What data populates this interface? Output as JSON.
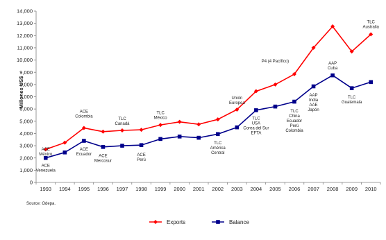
{
  "chart_data": {
    "type": "line",
    "ylabel": "Millones US$",
    "ylim": [
      0,
      14000
    ],
    "yticks": [
      "0",
      "1,000",
      "2,000",
      "3,000",
      "4,000",
      "5,000",
      "6,000",
      "7,000",
      "8,000",
      "9,000",
      "10,000",
      "11,000",
      "12,000",
      "13,000",
      "14,000"
    ],
    "x": [
      "1993",
      "1994",
      "1995",
      "1996",
      "1997",
      "1998",
      "1999",
      "2000",
      "2001",
      "2002",
      "2003",
      "2004",
      "2005",
      "2006",
      "2007",
      "2008",
      "2009",
      "2010"
    ],
    "series": [
      {
        "name": "Exports",
        "color": "#ff0000",
        "marker": "diamond",
        "values": [
          2700,
          3250,
          4450,
          4150,
          4250,
          4300,
          4700,
          4950,
          4750,
          5150,
          5950,
          7450,
          8000,
          8850,
          11000,
          12750,
          10700,
          12100
        ]
      },
      {
        "name": "Balance",
        "color": "#00008b",
        "marker": "square",
        "values": [
          2000,
          2450,
          3400,
          2900,
          3000,
          3050,
          3550,
          3750,
          3650,
          3950,
          4500,
          5900,
          6200,
          6600,
          7850,
          8750,
          7700,
          8200
        ]
      }
    ],
    "annotations": [
      {
        "x": "1993",
        "y": 2200,
        "lines": [
          "ACE",
          "México"
        ],
        "anchor": "above"
      },
      {
        "x": "1993",
        "y": 1550,
        "lines": [
          "ACE",
          "Venezuela"
        ],
        "anchor": "below"
      },
      {
        "x": "1995",
        "y": 5300,
        "lines": [
          "ACE",
          "Colombia"
        ],
        "anchor": "above"
      },
      {
        "x": "1995",
        "y": 2900,
        "lines": [
          "ACE",
          "Ecuador"
        ],
        "anchor": "below"
      },
      {
        "x": "1996",
        "y": 2350,
        "lines": [
          "ACE",
          "Mercosur"
        ],
        "anchor": "below"
      },
      {
        "x": "1997",
        "y": 4700,
        "lines": [
          "TLC",
          "Canadá"
        ],
        "anchor": "above"
      },
      {
        "x": "1998",
        "y": 2450,
        "lines": [
          "ACE",
          "Perú"
        ],
        "anchor": "below"
      },
      {
        "x": "1999",
        "y": 5200,
        "lines": [
          "TLC",
          "México"
        ],
        "anchor": "above"
      },
      {
        "x": "2002",
        "y": 3400,
        "lines": [
          "TLC",
          "América",
          "Central"
        ],
        "anchor": "below"
      },
      {
        "x": "2003",
        "y": 6400,
        "lines": [
          "Unión",
          "Europea"
        ],
        "anchor": "above"
      },
      {
        "x": "2004",
        "y": 5400,
        "lines": [
          "TLC",
          "USA",
          "Corea del Sur",
          "EFTA"
        ],
        "anchor": "below"
      },
      {
        "x": "2005",
        "y": 9800,
        "lines": [
          "P4 (4 Pacífico)"
        ],
        "anchor": "above"
      },
      {
        "x": "2006",
        "y": 6000,
        "lines": [
          "TLC",
          "China",
          "Ecuador",
          "Perú",
          "Colombia"
        ],
        "anchor": "below"
      },
      {
        "x": "2007",
        "y": 7300,
        "lines": [
          "AAP",
          "India",
          "AAE",
          "Japón"
        ],
        "anchor": "below"
      },
      {
        "x": "2008",
        "y": 9250,
        "lines": [
          "AAP",
          "Cuba"
        ],
        "anchor": "above"
      },
      {
        "x": "2009",
        "y": 7150,
        "lines": [
          "TLC",
          "Guatemala"
        ],
        "anchor": "below"
      },
      {
        "x": "2010",
        "y": 12600,
        "lines": [
          "TLC",
          "Australia"
        ],
        "anchor": "above"
      }
    ],
    "source": "Source: Odepa.",
    "legend": {
      "position": "bottom"
    },
    "grid": false
  }
}
